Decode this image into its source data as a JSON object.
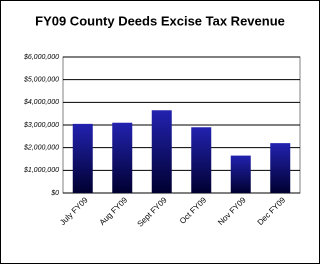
{
  "chart_data": {
    "type": "bar",
    "title": "FY09 County Deeds Excise Tax Revenue",
    "categories": [
      "July FY09",
      "Aug FY09",
      "Sept FY09",
      "Oct FY09",
      "Nov FY09",
      "Dec FY09"
    ],
    "values": [
      3050000,
      3100000,
      3650000,
      2900000,
      1650000,
      2200000
    ],
    "color": "#2222b0",
    "ylim": [
      0,
      6000000
    ],
    "yticks": [
      {
        "value": 0,
        "label": "$0"
      },
      {
        "value": 1000000,
        "label": "$1,000,000"
      },
      {
        "value": 2000000,
        "label": "$2,000,000"
      },
      {
        "value": 3000000,
        "label": "$3,000,000"
      },
      {
        "value": 4000000,
        "label": "$4,000,000"
      },
      {
        "value": 5000000,
        "label": "$5,000,000"
      },
      {
        "value": 6000000,
        "label": "$6,000,000"
      }
    ],
    "grid": true
  }
}
